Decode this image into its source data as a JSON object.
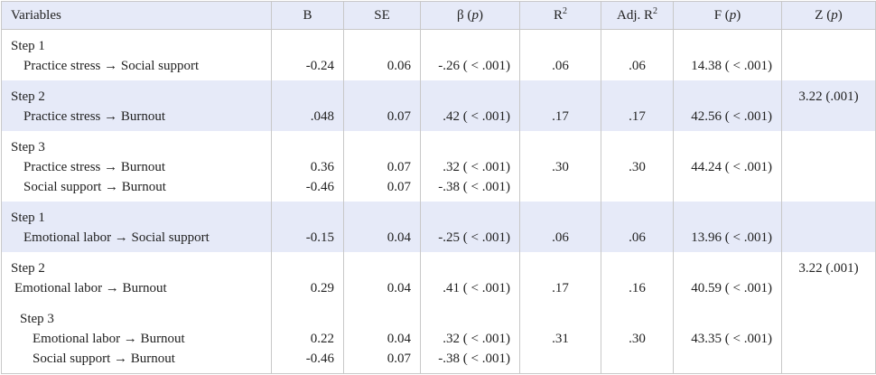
{
  "header": {
    "variables": "Variables",
    "b": "B",
    "se": "SE",
    "beta": {
      "text": "β (",
      "italic": "p",
      "close": ")"
    },
    "r2": {
      "base": "R",
      "sup": "2"
    },
    "adj_r2": {
      "base": "Adj. R",
      "sup": "2"
    },
    "f": {
      "text": "F (",
      "italic": "p",
      "close": ")"
    },
    "z": {
      "text": "Z (",
      "italic": "p",
      "close": ")"
    }
  },
  "groups": [
    {
      "step": "Step 1",
      "rows": [
        {
          "variables": "Practice stress → Social support",
          "b": "-0.24",
          "se": "0.06",
          "beta": "-.26 ( < .001)",
          "r2": ".06",
          "adj_r2": ".06",
          "f": "14.38 ( < .001)"
        }
      ]
    },
    {
      "step": "Step 2",
      "z": "3.22 (.001)",
      "rows": [
        {
          "variables": "Practice stress → Burnout",
          "b": ".048",
          "se": "0.07",
          "beta": ".42 ( < .001)",
          "r2": ".17",
          "adj_r2": ".17",
          "f": "42.56 ( < .001)"
        }
      ]
    },
    {
      "step": "Step 3",
      "rows": [
        {
          "variables": "Practice stress → Burnout",
          "b": "0.36",
          "se": "0.07",
          "beta": ".32 ( < .001)",
          "r2": ".30",
          "adj_r2": ".30",
          "f": "44.24 ( < .001)"
        },
        {
          "variables": "Social support → Burnout",
          "b": "-0.46",
          "se": "0.07",
          "beta": "-.38 ( < .001)"
        }
      ]
    },
    {
      "step": "Step 1",
      "rows": [
        {
          "variables": "Emotional labor → Social support",
          "b": "-0.15",
          "se": "0.04",
          "beta": "-.25 ( < .001)",
          "r2": ".06",
          "adj_r2": ".06",
          "f": "13.96 ( < .001)"
        }
      ]
    },
    {
      "step": "Step 2",
      "z": "3.22 (.001)",
      "rows": [
        {
          "variables": "Emotional labor → Burnout",
          "b": "0.29",
          "se": "0.04",
          "beta": ".41 ( < .001)",
          "r2": ".17",
          "adj_r2": ".16",
          "f": "40.59 ( < .001)"
        }
      ]
    },
    {
      "step": "Step 3",
      "rows": [
        {
          "variables": "Emotional labor → Burnout",
          "b": "0.22",
          "se": "0.04",
          "beta": ".32 ( < .001)",
          "r2": ".31",
          "adj_r2": ".30",
          "f": "43.35 ( < .001)"
        },
        {
          "variables": "Social support → Burnout",
          "b": "-0.46",
          "se": "0.07",
          "beta": "-.38 ( < .001)"
        }
      ]
    }
  ]
}
